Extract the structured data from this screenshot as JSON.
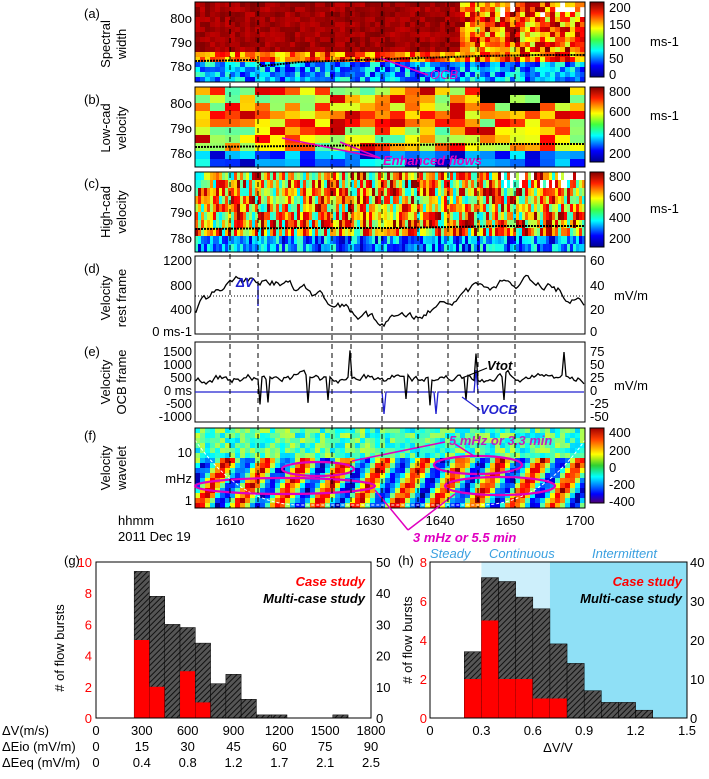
{
  "title_date": "2011 Dec 19",
  "time_label": "hhmm",
  "time_ticks": [
    "1610",
    "1620",
    "1630",
    "1640",
    "1650",
    "1700"
  ],
  "colors": {
    "case": "#ff0000",
    "multi": "#222222",
    "steady_bg": "#ffffff",
    "continuous_bg": "#cdeffb",
    "intermittent_bg": "#8fe0f6",
    "label_blue": "#3aa0e0",
    "magenta": "#e000c0",
    "blue": "#2020d0"
  },
  "panels": {
    "a": {
      "label": "(a)",
      "ylabel": [
        "Spectral",
        "width"
      ],
      "yticks": [
        "80o",
        "79o",
        "78o"
      ],
      "cbar_ticks": [
        "200",
        "150",
        "100",
        "50",
        "0"
      ],
      "cbar_unit": "ms-1",
      "annotation": "OCB"
    },
    "b": {
      "label": "(b)",
      "ylabel": [
        "Low-cad",
        "velocity"
      ],
      "yticks": [
        "80o",
        "79o",
        "78o"
      ],
      "cbar_ticks": [
        "800",
        "600",
        "400",
        "200"
      ],
      "cbar_unit": "ms-1",
      "annotation": "Enhanced flows"
    },
    "c": {
      "label": "(c)",
      "ylabel": [
        "High-cad",
        "velocity"
      ],
      "yticks": [
        "80o",
        "79o",
        "78o"
      ],
      "cbar_ticks": [
        "800",
        "600",
        "400",
        "200"
      ],
      "cbar_unit": "ms-1"
    },
    "d": {
      "label": "(d)",
      "ylabel": [
        "Velocity",
        "rest frame"
      ],
      "yticks": [
        "1200",
        "800",
        "400",
        "0 ms-1"
      ],
      "y2ticks": [
        "60",
        "40",
        "20",
        "0"
      ],
      "y2unit": "mV/m",
      "annotation": "ΔV"
    },
    "e": {
      "label": "(e)",
      "ylabel": [
        "Velocity",
        "OCB frame"
      ],
      "yticks": [
        "1500",
        "1000",
        "500",
        "0 ms",
        "-500",
        "-1000"
      ],
      "y2ticks": [
        "75",
        "50",
        "25",
        "0",
        "-25",
        "-50"
      ],
      "y2unit": "mV/m",
      "vtot": "Vtot",
      "vocb": "VOCB"
    },
    "f": {
      "label": "(f)",
      "ylabel": [
        "Velocity",
        "wavelet"
      ],
      "yticks": [
        "10",
        "mHz",
        "1"
      ],
      "cbar_ticks": [
        "400",
        "200",
        "0",
        "-200",
        "-400"
      ],
      "annotation1": "5 mHz or 3.3 min",
      "annotation2": "3 mHz or 5.5 min"
    }
  },
  "chart_data": [
    {
      "type": "bar",
      "panel": "(g)",
      "title": "",
      "legend": [
        "Case study",
        "Multi-case study"
      ],
      "ylabel": "# of flow bursts",
      "bin_edges": [
        250,
        350,
        450,
        550,
        650,
        750,
        850,
        950,
        1050,
        1150,
        1250,
        1350,
        1450,
        1550,
        1650
      ],
      "case_counts": [
        5,
        2,
        0,
        3,
        1,
        0,
        0,
        0,
        0,
        0,
        0,
        0,
        0,
        0
      ],
      "multi_counts": [
        47,
        39,
        30,
        29,
        24,
        11,
        14,
        6,
        1,
        1,
        0,
        0,
        0,
        1
      ],
      "ylim_left": [
        0,
        10
      ],
      "ylim_right": [
        0,
        50
      ],
      "yticks_left": [
        "0",
        "2",
        "4",
        "6",
        "8",
        "10"
      ],
      "yticks_right": [
        "0",
        "10",
        "20",
        "30",
        "40",
        "50"
      ],
      "x_rows": [
        {
          "label": "ΔV(m/s)",
          "ticks": [
            "0",
            "300",
            "600",
            "900",
            "1200",
            "1500",
            "1800"
          ]
        },
        {
          "label": "ΔEio (mV/m)",
          "ticks": [
            "0",
            "15",
            "30",
            "45",
            "60",
            "75",
            "90"
          ]
        },
        {
          "label": "ΔEeq (mV/m)",
          "ticks": [
            "0",
            "0.4",
            "0.8",
            "1.2",
            "1.7",
            "2.1",
            "2.5"
          ]
        }
      ],
      "xlim": [
        0,
        1800
      ]
    },
    {
      "type": "bar",
      "panel": "(h)",
      "legend": [
        "Case study",
        "Multi-case study"
      ],
      "ylabel": "# of flow bursts",
      "xlabel": "ΔV/V",
      "regions": [
        "Steady",
        "Continuous",
        "Intermittent"
      ],
      "bin_edges": [
        0.2,
        0.3,
        0.4,
        0.5,
        0.6,
        0.7,
        0.8,
        0.9,
        1.0,
        1.1,
        1.2,
        1.3
      ],
      "case_counts": [
        2,
        5,
        2,
        2,
        1,
        1,
        0,
        0,
        0,
        0,
        0
      ],
      "multi_counts": [
        17,
        36,
        35,
        31,
        28,
        19,
        14,
        7,
        4,
        4,
        2
      ],
      "ylim_left": [
        0,
        8
      ],
      "ylim_right": [
        0,
        40
      ],
      "yticks_left": [
        "0",
        "2",
        "4",
        "6",
        "8"
      ],
      "yticks_right": [
        "0",
        "10",
        "20",
        "30",
        "40"
      ],
      "xticks": [
        "0",
        "0.3",
        "0.6",
        "0.9",
        "1.2",
        "1.5"
      ],
      "xlim": [
        0,
        1.5
      ]
    }
  ]
}
